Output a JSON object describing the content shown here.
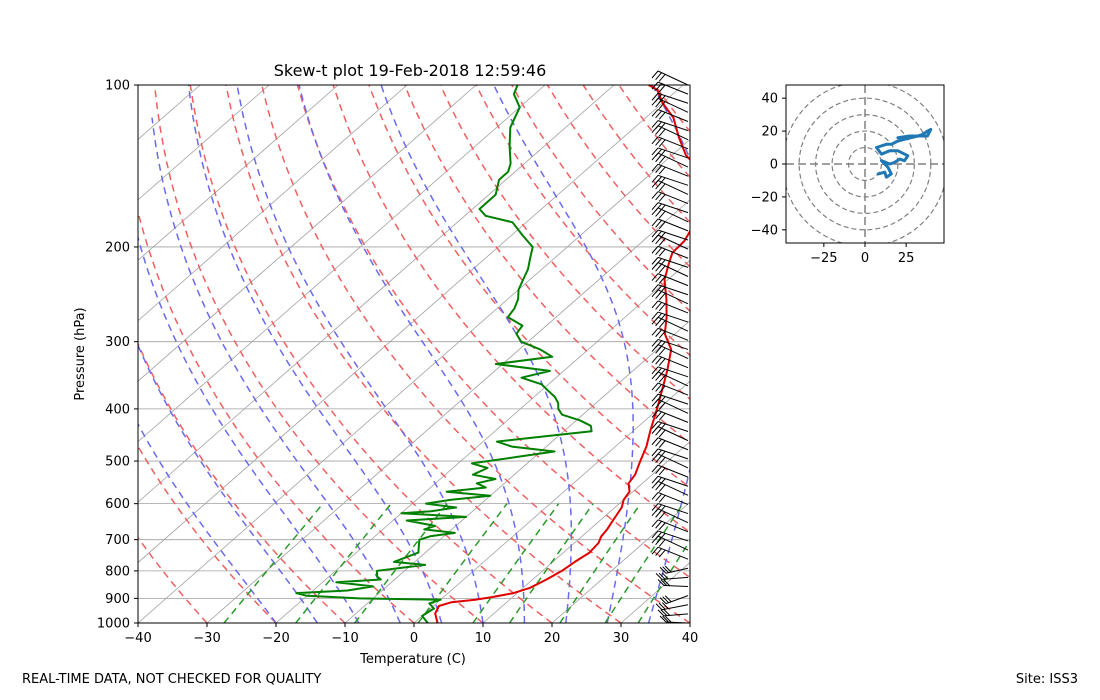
{
  "footer": {
    "disclaimer": "REAL-TIME DATA, NOT CHECKED FOR QUALITY",
    "site": "Site: ISS3"
  },
  "colors": {
    "temperature": "#e00000",
    "dewpoint": "#008000",
    "dry_adiabat": "#f06060",
    "moist_adiabat": "#6a6af0",
    "mixing_ratio": "#2a9a2a",
    "isotherm": "#a0a0a0",
    "hodograph": "#1f77b4",
    "barb": "#000000"
  },
  "chart_data": [
    {
      "type": "line",
      "subtype": "skew-t",
      "title": "Skew-t plot 19-Feb-2018 12:59:46",
      "xlabel": "Temperature (C)",
      "ylabel": "Pressure (hPa)",
      "xlim": [
        -40,
        40
      ],
      "ylim": [
        1000,
        100
      ],
      "yscale": "log",
      "xticks": [
        "−40",
        "−30",
        "−20",
        "−10",
        "0",
        "10",
        "20",
        "30",
        "40"
      ],
      "yticks": [
        "100",
        "200",
        "300",
        "400",
        "500",
        "600",
        "700",
        "800",
        "900",
        "1000"
      ],
      "grid": true,
      "series": [
        {
          "key": "temperature",
          "p": [
            1000,
            960,
            930,
            915,
            905,
            895,
            880,
            860,
            830,
            800,
            770,
            740,
            710,
            690,
            670,
            650,
            630,
            610,
            590,
            570,
            550,
            530,
            500,
            470,
            440,
            400,
            370,
            340,
            310,
            290,
            270,
            250,
            230,
            215,
            205,
            195,
            185,
            175,
            165,
            155,
            145,
            135,
            125,
            115,
            108,
            102,
            100
          ],
          "values": [
            3.4,
            1.5,
            0.8,
            2.0,
            5.0,
            7.0,
            9.5,
            11.0,
            12.0,
            12.8,
            13.2,
            13.8,
            13.5,
            12.8,
            12.5,
            12.0,
            11.5,
            11.0,
            10.0,
            9.5,
            8.0,
            7.5,
            6.0,
            4.5,
            2.5,
            -0.2,
            -2.5,
            -5.0,
            -8.0,
            -11.5,
            -14.0,
            -17.0,
            -20.5,
            -22.5,
            -23.8,
            -24.0,
            -25.0,
            -26.0,
            -27.0,
            -29.0,
            -33.0,
            -38.0,
            -42.0,
            -46.0,
            -50.0,
            -53.0,
            -55.0
          ]
        },
        {
          "key": "dewpoint",
          "p": [
            1000,
            970,
            940,
            920,
            905,
            900,
            890,
            880,
            870,
            855,
            840,
            830,
            820,
            800,
            780,
            770,
            740,
            720,
            700,
            690,
            680,
            670,
            660,
            645,
            635,
            625,
            620,
            610,
            600,
            590,
            580,
            570,
            560,
            550,
            540,
            530,
            515,
            505,
            500,
            490,
            480,
            470,
            460,
            450,
            440,
            430,
            420,
            410,
            400,
            390,
            380,
            370,
            360,
            350,
            340,
            330,
            320,
            310,
            300,
            290,
            280,
            270,
            260,
            250,
            240,
            230,
            220,
            210,
            200,
            190,
            180,
            175,
            170,
            165,
            160,
            150,
            145,
            140,
            130,
            120,
            110,
            104,
            100
          ],
          "values": [
            2.0,
            0.0,
            0.5,
            -1.0,
            0.0,
            -12.0,
            -20.0,
            -22.0,
            -15.0,
            -12.0,
            -18.0,
            -12.0,
            -13.0,
            -14.0,
            -8.0,
            -13.0,
            -11.0,
            -12.0,
            -13.0,
            -12.0,
            -9.0,
            -14.0,
            -13.0,
            -18.0,
            -10.0,
            -20.0,
            -16.0,
            -13.0,
            -18.0,
            -15.0,
            -10.0,
            -17.0,
            -12.0,
            -14.0,
            -12.0,
            -16.0,
            -15.0,
            -18.0,
            -16.0,
            -12.0,
            -8.0,
            -15.0,
            -18.0,
            -12.0,
            -6.0,
            -7.0,
            -9.5,
            -13.0,
            -14.5,
            -15.5,
            -17.0,
            -19.0,
            -21.0,
            -25.0,
            -22.0,
            -31.0,
            -24.0,
            -27.0,
            -31.0,
            -33.0,
            -33.5,
            -37.0,
            -37.5,
            -38.5,
            -40.0,
            -41.0,
            -42.0,
            -43.5,
            -45.0,
            -48.5,
            -52.0,
            -57.0,
            -59.0,
            -59.0,
            -59.0,
            -61.0,
            -61.0,
            -62.0,
            -65.0,
            -68.0,
            -70.0,
            -73.0,
            -74.0
          ]
        }
      ],
      "wind_barbs": "flag column at right edge, 100–1000 hPa"
    },
    {
      "type": "line",
      "subtype": "hodograph",
      "title": "",
      "xlim": [
        -48,
        48
      ],
      "ylim": [
        -48,
        48
      ],
      "xticks": [
        "−25",
        "0",
        "25"
      ],
      "yticks": [
        "40",
        "20",
        "0",
        "−20",
        "−40"
      ],
      "rings": [
        10,
        20,
        30,
        40,
        50
      ],
      "u": [
        8,
        12,
        13,
        16,
        14,
        10,
        15,
        18,
        21,
        24,
        26,
        24,
        20,
        15,
        10,
        7,
        13,
        16,
        20,
        24,
        28,
        32,
        35,
        38,
        40,
        38,
        33,
        27,
        20
      ],
      "v": [
        -6,
        -5,
        -8,
        -6,
        -2,
        2,
        0,
        1,
        3,
        2,
        5,
        6,
        8,
        8,
        6,
        10,
        12,
        12,
        14,
        15,
        16,
        17,
        18,
        20,
        21,
        17,
        17,
        17,
        16
      ]
    }
  ]
}
